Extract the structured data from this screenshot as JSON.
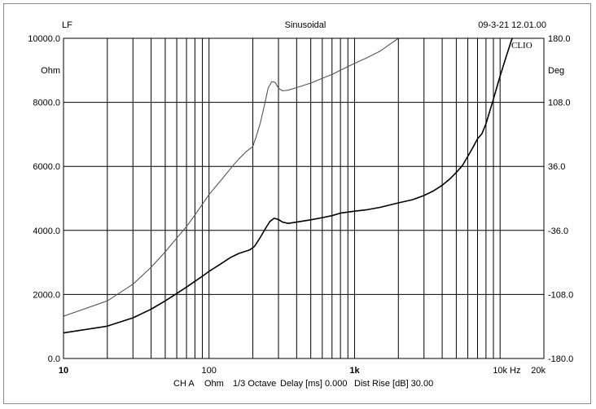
{
  "header": {
    "left": "LF",
    "center": "Sinusoidal",
    "right": "09-3-21 12.01.00"
  },
  "axis_units": {
    "left": "Ohm",
    "right": "Deg",
    "bottom": "Hz"
  },
  "watermark": "CLIO",
  "footer": {
    "channel": "CH A",
    "unit": "Ohm",
    "smoothing": "1/3 Octave",
    "delay": "Delay [ms] 0.000",
    "dist_rise": "Dist Rise [dB] 30.00"
  },
  "chart_data": {
    "type": "line",
    "x_scale": "log",
    "xlim": [
      10,
      20000
    ],
    "ylim": [
      0,
      10000
    ],
    "y2lim": [
      -180,
      180
    ],
    "grid": true,
    "x_ticks": [
      {
        "value": 10,
        "label": "10",
        "bold": true
      },
      {
        "value": 100,
        "label": "100",
        "bold": false
      },
      {
        "value": 1000,
        "label": "1k",
        "bold": true
      },
      {
        "value": 10000,
        "label": "10k",
        "bold": false
      },
      {
        "value": 20000,
        "label": "20k",
        "bold": false
      }
    ],
    "y_ticks": [
      {
        "value": 0,
        "label": "0.0"
      },
      {
        "value": 2000,
        "label": "2000.0"
      },
      {
        "value": 4000,
        "label": "4000.0"
      },
      {
        "value": 6000,
        "label": "6000.0"
      },
      {
        "value": 8000,
        "label": "8000.0"
      },
      {
        "value": 10000,
        "label": "10000.0"
      }
    ],
    "y2_ticks": [
      {
        "value": -180,
        "label": "-180.0"
      },
      {
        "value": -108,
        "label": "-108.0"
      },
      {
        "value": -36,
        "label": "-36.0"
      },
      {
        "value": 36,
        "label": "36.0"
      },
      {
        "value": 108,
        "label": "108.0"
      },
      {
        "value": 180,
        "label": "180.0"
      }
    ],
    "series": [
      {
        "axis": "left",
        "color": "#555555",
        "points": [
          [
            10,
            1320
          ],
          [
            20,
            1800
          ],
          [
            30,
            2320
          ],
          [
            40,
            2850
          ],
          [
            50,
            3330
          ],
          [
            60,
            3760
          ],
          [
            70,
            4120
          ],
          [
            80,
            4480
          ],
          [
            90,
            4820
          ],
          [
            100,
            5120
          ],
          [
            120,
            5550
          ],
          [
            140,
            5920
          ],
          [
            160,
            6230
          ],
          [
            180,
            6460
          ],
          [
            200,
            6620
          ],
          [
            210,
            6900
          ],
          [
            225,
            7350
          ],
          [
            240,
            7900
          ],
          [
            255,
            8450
          ],
          [
            270,
            8650
          ],
          [
            285,
            8620
          ],
          [
            300,
            8440
          ],
          [
            320,
            8360
          ],
          [
            350,
            8380
          ],
          [
            400,
            8460
          ],
          [
            500,
            8600
          ],
          [
            600,
            8750
          ],
          [
            700,
            8870
          ],
          [
            800,
            9000
          ],
          [
            1000,
            9220
          ],
          [
            1200,
            9380
          ],
          [
            1500,
            9600
          ],
          [
            2000,
            10000
          ],
          [
            2200,
            10150
          ]
        ]
      },
      {
        "axis": "left",
        "color": "#000000",
        "points": [
          [
            10,
            800
          ],
          [
            20,
            1010
          ],
          [
            30,
            1270
          ],
          [
            40,
            1540
          ],
          [
            50,
            1800
          ],
          [
            60,
            2030
          ],
          [
            70,
            2230
          ],
          [
            80,
            2410
          ],
          [
            90,
            2570
          ],
          [
            100,
            2720
          ],
          [
            120,
            2950
          ],
          [
            140,
            3150
          ],
          [
            160,
            3280
          ],
          [
            190,
            3390
          ],
          [
            205,
            3500
          ],
          [
            225,
            3780
          ],
          [
            245,
            4070
          ],
          [
            262,
            4280
          ],
          [
            280,
            4380
          ],
          [
            300,
            4340
          ],
          [
            320,
            4260
          ],
          [
            350,
            4220
          ],
          [
            400,
            4260
          ],
          [
            500,
            4330
          ],
          [
            600,
            4400
          ],
          [
            700,
            4460
          ],
          [
            800,
            4540
          ],
          [
            1000,
            4600
          ],
          [
            1200,
            4640
          ],
          [
            1500,
            4720
          ],
          [
            2000,
            4860
          ],
          [
            2500,
            4960
          ],
          [
            3000,
            5090
          ],
          [
            3500,
            5240
          ],
          [
            4000,
            5410
          ],
          [
            4500,
            5600
          ],
          [
            5000,
            5810
          ],
          [
            5500,
            6020
          ],
          [
            6000,
            6310
          ],
          [
            6500,
            6590
          ],
          [
            7000,
            6860
          ],
          [
            7500,
            7020
          ],
          [
            8000,
            7330
          ],
          [
            8500,
            7730
          ],
          [
            9000,
            8100
          ],
          [
            10000,
            8820
          ],
          [
            11000,
            9420
          ],
          [
            12000,
            9950
          ],
          [
            12500,
            10100
          ]
        ]
      }
    ]
  }
}
